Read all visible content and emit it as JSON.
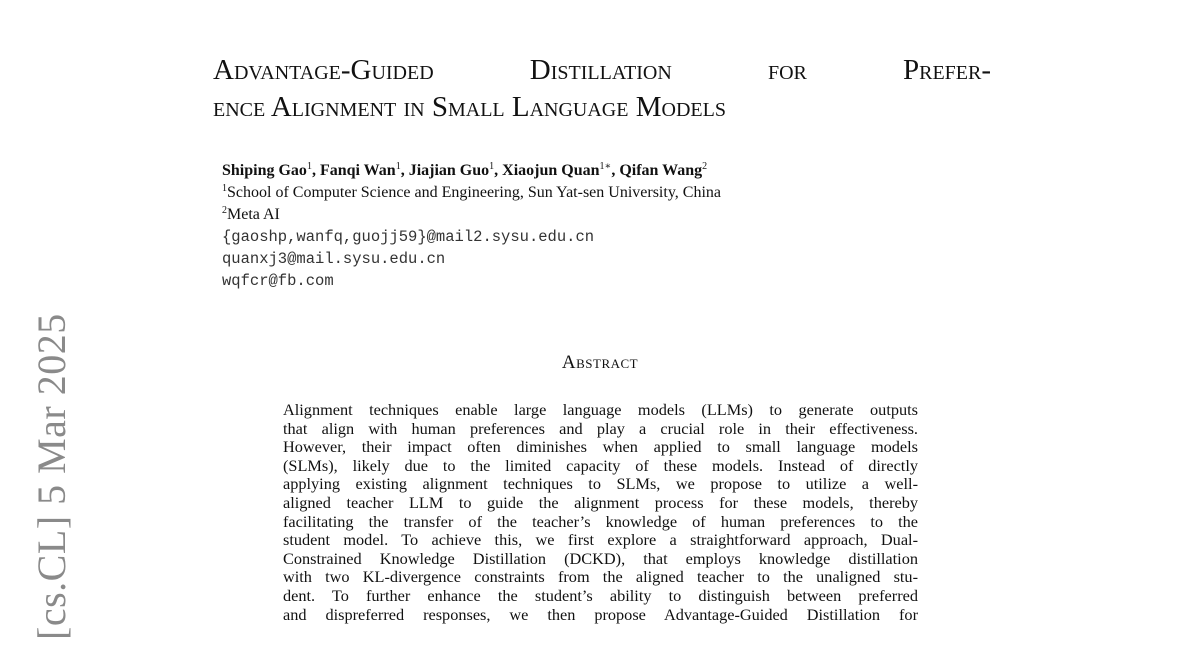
{
  "stamp": "[cs.CL]  5 Mar 2025",
  "title": {
    "line1": "Advantage-Guided Distillation for Prefer-",
    "line2": "ence Alignment in Small Language Models"
  },
  "authors": [
    {
      "name": "Shiping Gao",
      "sup": "1"
    },
    {
      "name": "Fanqi Wan",
      "sup": "1"
    },
    {
      "name": "Jiajian Guo",
      "sup": "1"
    },
    {
      "name": "Xiaojun Quan",
      "sup": "1∗"
    },
    {
      "name": "Qifan Wang",
      "sup": "2"
    }
  ],
  "affiliations": [
    {
      "sup": "1",
      "text": "School of Computer Science and Engineering, Sun Yat-sen University, China"
    },
    {
      "sup": "2",
      "text": "Meta AI"
    }
  ],
  "emails": [
    "{gaoshp,wanfq,guojj59}@mail2.sysu.edu.cn",
    "quanxj3@mail.sysu.edu.cn",
    "wqfcr@fb.com"
  ],
  "abstract": {
    "heading": "Abstract",
    "lines": [
      "Alignment techniques enable large language models (LLMs) to generate outputs",
      "that align with human preferences and play a crucial role in their effectiveness.",
      "However, their impact often diminishes when applied to small language models",
      "(SLMs), likely due to the limited capacity of these models.  Instead of directly",
      "applying existing alignment techniques to SLMs, we propose to utilize a well-",
      "aligned teacher LLM to guide the alignment process for these models, thereby",
      "facilitating the transfer of the teacher’s knowledge of human preferences to the",
      "student model. To achieve this, we first explore a straightforward approach, Dual-",
      "Constrained Knowledge Distillation (DCKD), that employs knowledge distillation",
      "with two KL-divergence constraints from the aligned teacher to the unaligned stu-",
      "dent.  To further enhance the student’s ability to distinguish between preferred",
      "and dispreferred responses, we then propose Advantage-Guided Distillation for"
    ]
  }
}
